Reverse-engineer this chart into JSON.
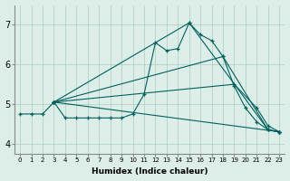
{
  "xlabel": "Humidex (Indice chaleur)",
  "bg_color": "#ddeee8",
  "grid_color": "#aaccbb",
  "line_color": "#006060",
  "xlim": [
    -0.5,
    23.5
  ],
  "ylim": [
    3.75,
    7.5
  ],
  "xticks": [
    0,
    1,
    2,
    3,
    4,
    5,
    6,
    7,
    8,
    9,
    10,
    11,
    12,
    13,
    14,
    15,
    16,
    17,
    18,
    19,
    20,
    21,
    22,
    23
  ],
  "yticks": [
    4,
    5,
    6,
    7
  ],
  "series": [
    {
      "x": [
        0,
        1,
        2,
        3,
        4,
        5,
        6,
        7,
        8,
        9,
        10,
        11,
        12,
        13,
        14,
        15,
        16,
        17,
        18,
        19,
        20,
        21,
        22,
        23
      ],
      "y": [
        4.75,
        4.75,
        4.75,
        5.05,
        4.65,
        4.65,
        4.65,
        4.65,
        4.65,
        4.65,
        4.75,
        5.25,
        6.55,
        6.35,
        6.4,
        7.05,
        6.75,
        6.6,
        6.2,
        5.45,
        4.9,
        4.55,
        4.35,
        4.3
      ]
    },
    {
      "x": [
        3,
        23
      ],
      "y": [
        5.05,
        4.3
      ]
    },
    {
      "x": [
        3,
        19,
        21,
        22,
        23
      ],
      "y": [
        5.05,
        5.5,
        4.9,
        4.45,
        4.3
      ]
    },
    {
      "x": [
        3,
        18,
        22,
        23
      ],
      "y": [
        5.05,
        6.2,
        4.35,
        4.3
      ]
    },
    {
      "x": [
        3,
        15,
        22,
        23
      ],
      "y": [
        5.05,
        7.05,
        4.35,
        4.3
      ]
    }
  ]
}
